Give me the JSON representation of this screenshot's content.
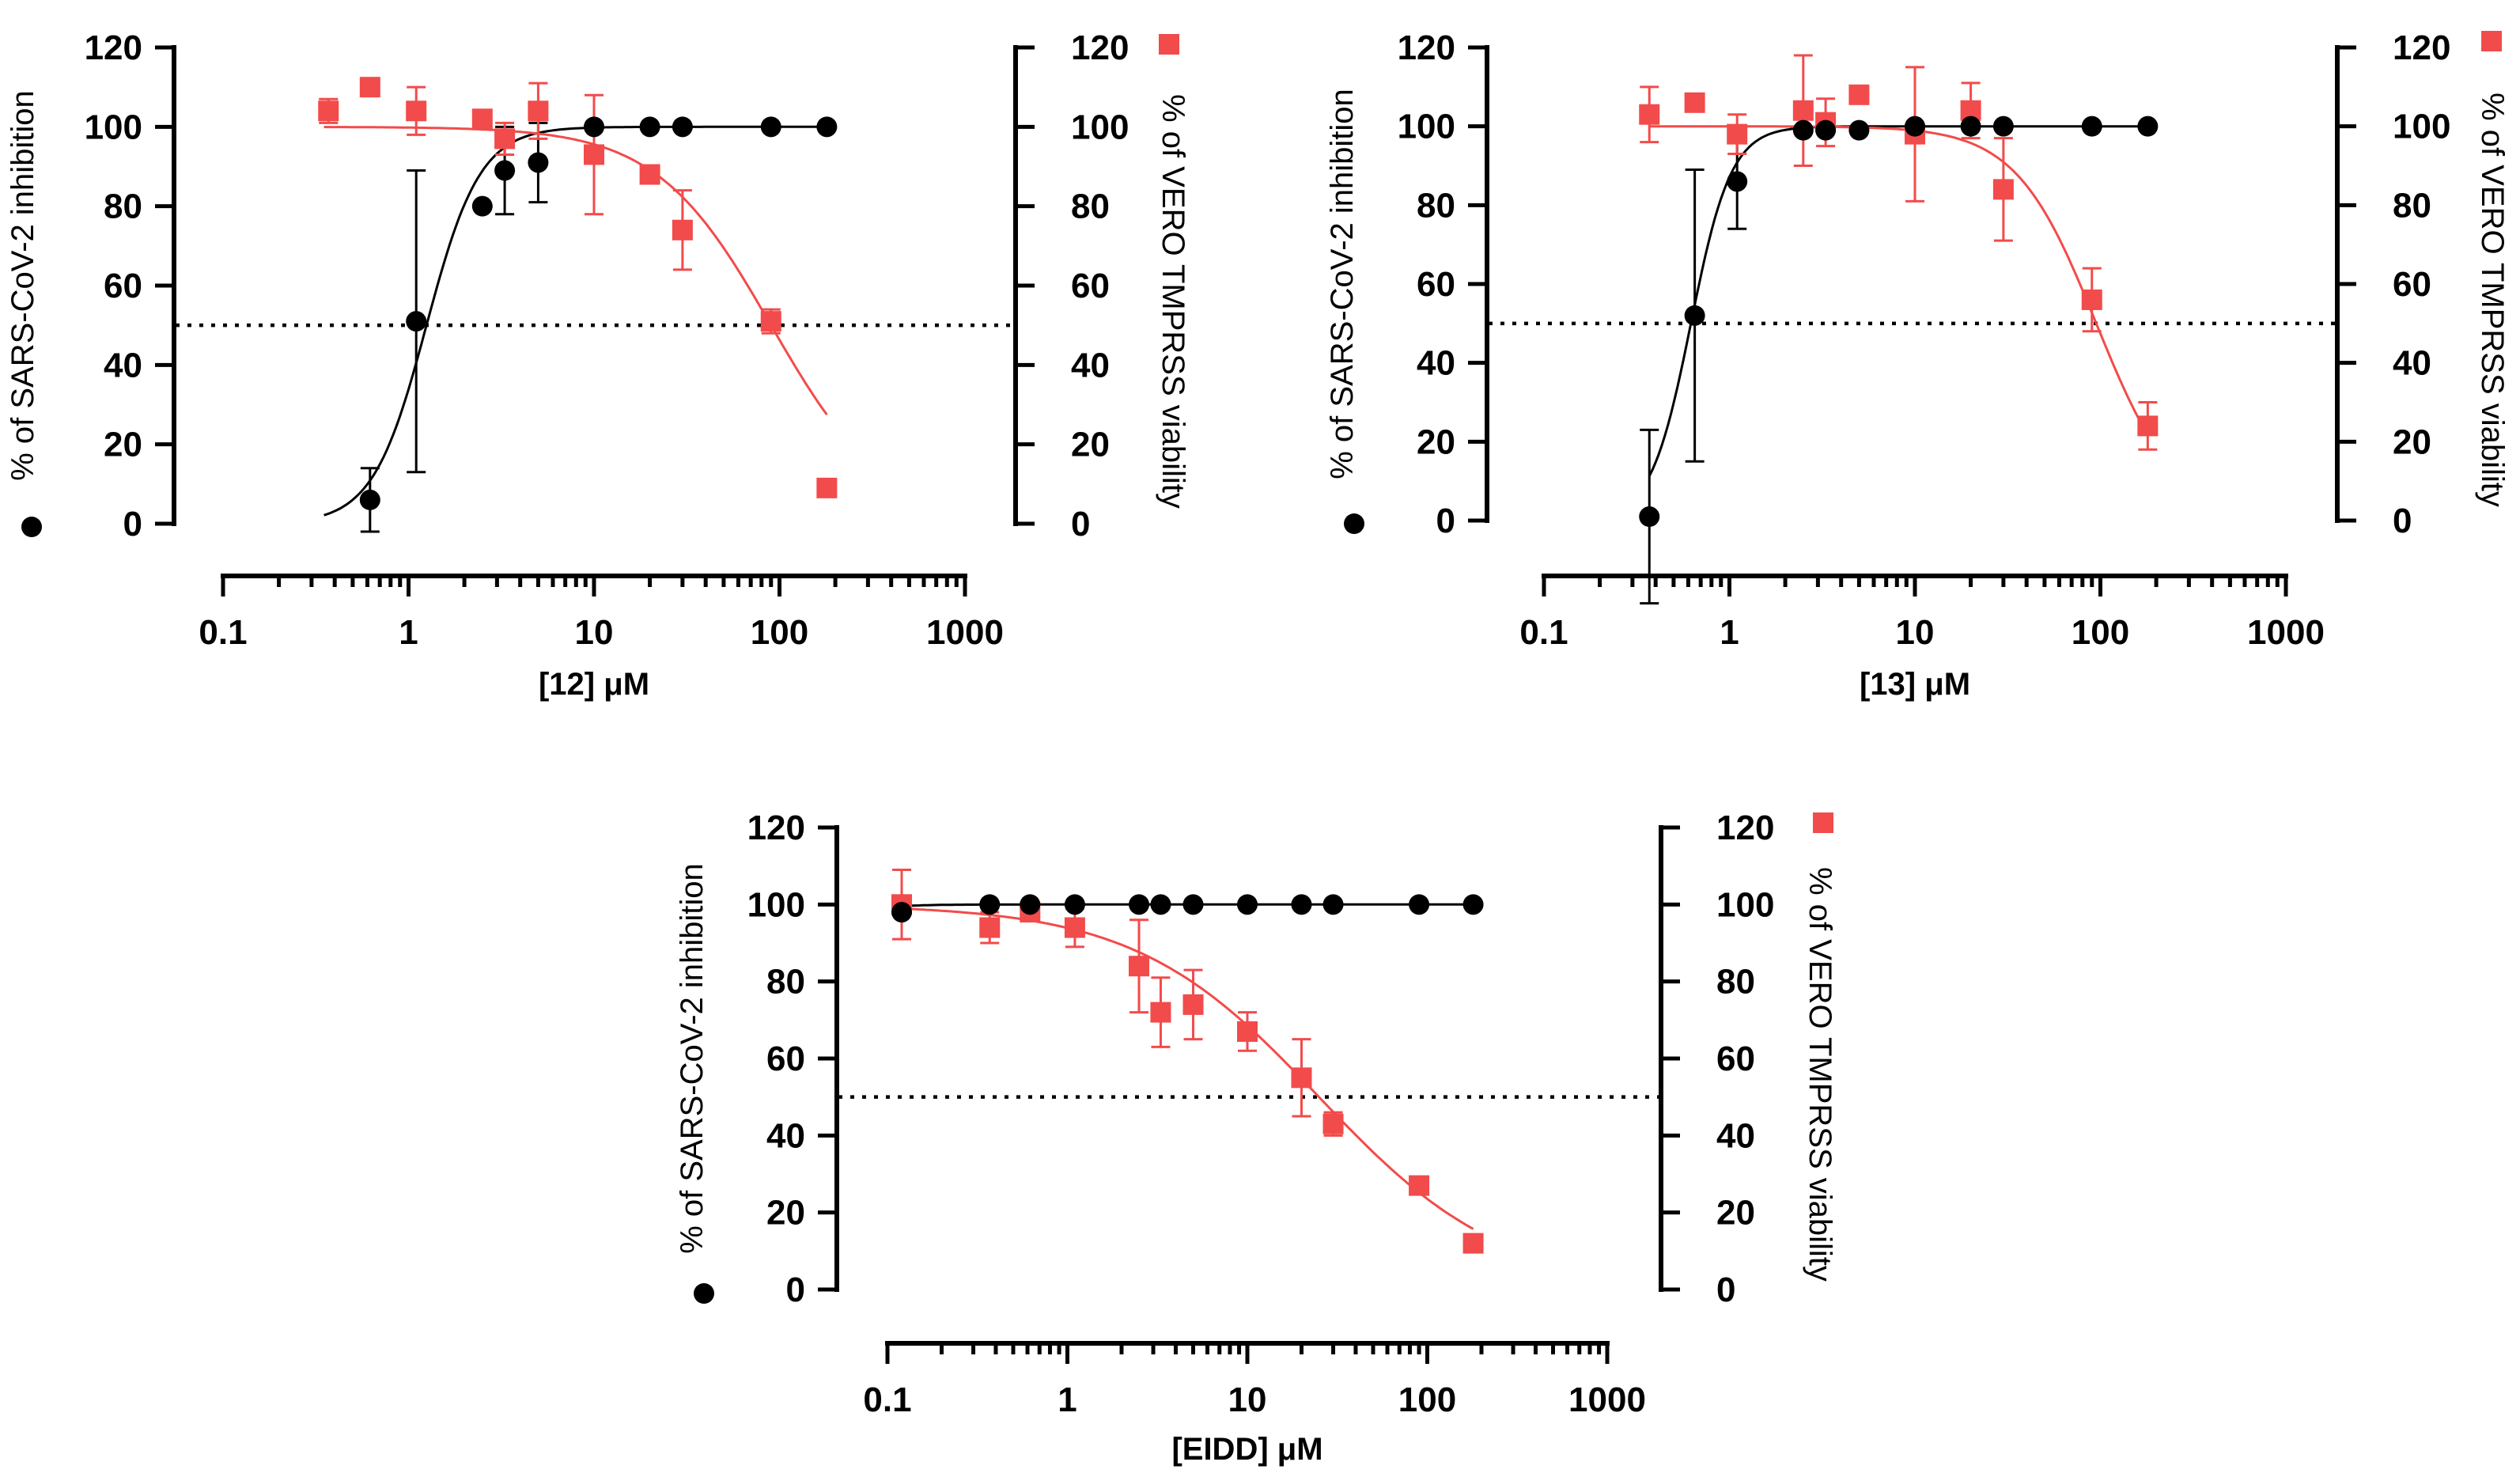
{
  "colors": {
    "inhibition": "#000000",
    "viability": "#f24b4b"
  },
  "chart_data": [
    {
      "type": "scatter",
      "name": "panel-12",
      "xlabel": "[12] μM",
      "ylabel_left": "% of SARS-CoV-2 inhibition",
      "ylabel_right": "% of VERO TMPRSS viability",
      "xscale": "log",
      "xlim": [
        0.1,
        1000
      ],
      "ylim": [
        0,
        120
      ],
      "xticks": [
        "0.1",
        "1",
        "10",
        "100",
        "1000"
      ],
      "yticks": [
        "0",
        "20",
        "40",
        "60",
        "80",
        "100",
        "120"
      ],
      "reference_line": 50,
      "series": [
        {
          "name": "SARS-CoV-2 inhibition",
          "marker": "circle",
          "axis": "left",
          "x": [
            0.62,
            1.1,
            2.5,
            3.3,
            5,
            10,
            20,
            30,
            90,
            180
          ],
          "y": [
            6,
            51,
            80,
            89,
            91,
            100,
            100,
            100,
            100,
            100
          ],
          "error": [
            8,
            38,
            0,
            11,
            10,
            0,
            0,
            0,
            0,
            0
          ],
          "fit": {
            "type": "increasing",
            "ec50": 1.25,
            "hill": 3.0,
            "top": 100,
            "bottom": 0,
            "range": [
              0.35,
              180
            ]
          }
        },
        {
          "name": "VERO TMPRSS viability",
          "marker": "square",
          "axis": "right",
          "x": [
            0.37,
            0.62,
            1.1,
            2.5,
            3.3,
            5,
            10,
            20,
            30,
            90,
            180
          ],
          "y": [
            104,
            110,
            104,
            102,
            97,
            104,
            93,
            88,
            74,
            51,
            9
          ],
          "error": [
            3,
            1,
            6,
            2,
            4,
            7,
            15,
            2,
            10,
            3,
            0
          ],
          "fit": {
            "type": "decreasing",
            "ic50": 90,
            "hill": 1.4,
            "top": 100,
            "bottom": 0,
            "range": [
              0.35,
              180
            ]
          }
        }
      ]
    },
    {
      "type": "scatter",
      "name": "panel-13",
      "xlabel": "[13] μM",
      "ylabel_left": "% of SARS-CoV-2 inhibition",
      "ylabel_right": "% of VERO TMPRSS viability",
      "xscale": "log",
      "xlim": [
        0.1,
        1000
      ],
      "ylim": [
        0,
        120
      ],
      "xticks": [
        "0.1",
        "1",
        "10",
        "100",
        "1000"
      ],
      "yticks": [
        "0",
        "20",
        "40",
        "60",
        "80",
        "100",
        "120"
      ],
      "reference_line": 50,
      "series": [
        {
          "name": "SARS-CoV-2 inhibition",
          "marker": "circle",
          "axis": "left",
          "x": [
            0.37,
            0.65,
            1.1,
            2.5,
            3.3,
            5,
            10,
            20,
            30,
            90,
            180
          ],
          "y": [
            1,
            52,
            86,
            99,
            99,
            99,
            100,
            100,
            100,
            100,
            100
          ],
          "error": [
            22,
            37,
            12,
            0,
            0,
            0,
            0,
            0,
            0,
            0,
            0
          ],
          "fit": {
            "type": "increasing",
            "ec50": 0.62,
            "hill": 4.0,
            "top": 100,
            "bottom": 0,
            "range": [
              0.37,
              180
            ]
          }
        },
        {
          "name": "VERO TMPRSS viability",
          "marker": "square",
          "axis": "right",
          "x": [
            0.37,
            0.65,
            1.1,
            2.5,
            3.3,
            5,
            10,
            20,
            30,
            90,
            180
          ],
          "y": [
            103,
            106,
            98,
            104,
            101,
            108,
            98,
            104,
            84,
            56,
            24
          ],
          "error": [
            7,
            0,
            5,
            14,
            6,
            0,
            17,
            7,
            13,
            8,
            6
          ],
          "fit": {
            "type": "decreasing",
            "ic50": 95,
            "hill": 2.0,
            "top": 100,
            "bottom": 0,
            "range": [
              0.37,
              180
            ]
          }
        }
      ]
    },
    {
      "type": "scatter",
      "name": "panel-eidd",
      "xlabel": "[EIDD] μM",
      "ylabel_left": "% of SARS-CoV-2 inhibition",
      "ylabel_right": "% of VERO TMPRSS viability",
      "xscale": "log",
      "xlim": [
        0.1,
        1000
      ],
      "ylim": [
        0,
        120
      ],
      "xticks": [
        "0.1",
        "1",
        "10",
        "100",
        "1000"
      ],
      "yticks": [
        "0",
        "20",
        "40",
        "60",
        "80",
        "100",
        "120"
      ],
      "reference_line": 50,
      "series": [
        {
          "name": "SARS-CoV-2 inhibition",
          "marker": "circle",
          "axis": "left",
          "x": [
            0.12,
            0.37,
            0.62,
            1.1,
            2.5,
            3.3,
            5,
            10,
            20,
            30,
            90,
            180
          ],
          "y": [
            98,
            100,
            100,
            100,
            100,
            100,
            100,
            100,
            100,
            100,
            100,
            100
          ],
          "error": [
            0,
            0,
            0,
            0,
            0,
            0,
            0,
            0,
            0,
            0,
            0,
            0
          ],
          "fit": {
            "type": "increasing",
            "ec50": 0.02,
            "hill": 3.0,
            "top": 100,
            "bottom": 0,
            "range": [
              0.12,
              180
            ]
          }
        },
        {
          "name": "VERO TMPRSS viability",
          "marker": "square",
          "axis": "right",
          "x": [
            0.12,
            0.37,
            0.62,
            1.1,
            2.5,
            3.3,
            5,
            10,
            20,
            30,
            90,
            180
          ],
          "y": [
            100,
            94,
            98,
            94,
            84,
            72,
            74,
            67,
            55,
            43,
            27,
            12
          ],
          "error": [
            9,
            4,
            0,
            5,
            12,
            9,
            9,
            5,
            10,
            3,
            2,
            0
          ],
          "fit": {
            "type": "decreasing",
            "ic50": 25,
            "hill": 0.85,
            "top": 100,
            "bottom": 0,
            "range": [
              0.12,
              180
            ]
          }
        }
      ]
    }
  ]
}
